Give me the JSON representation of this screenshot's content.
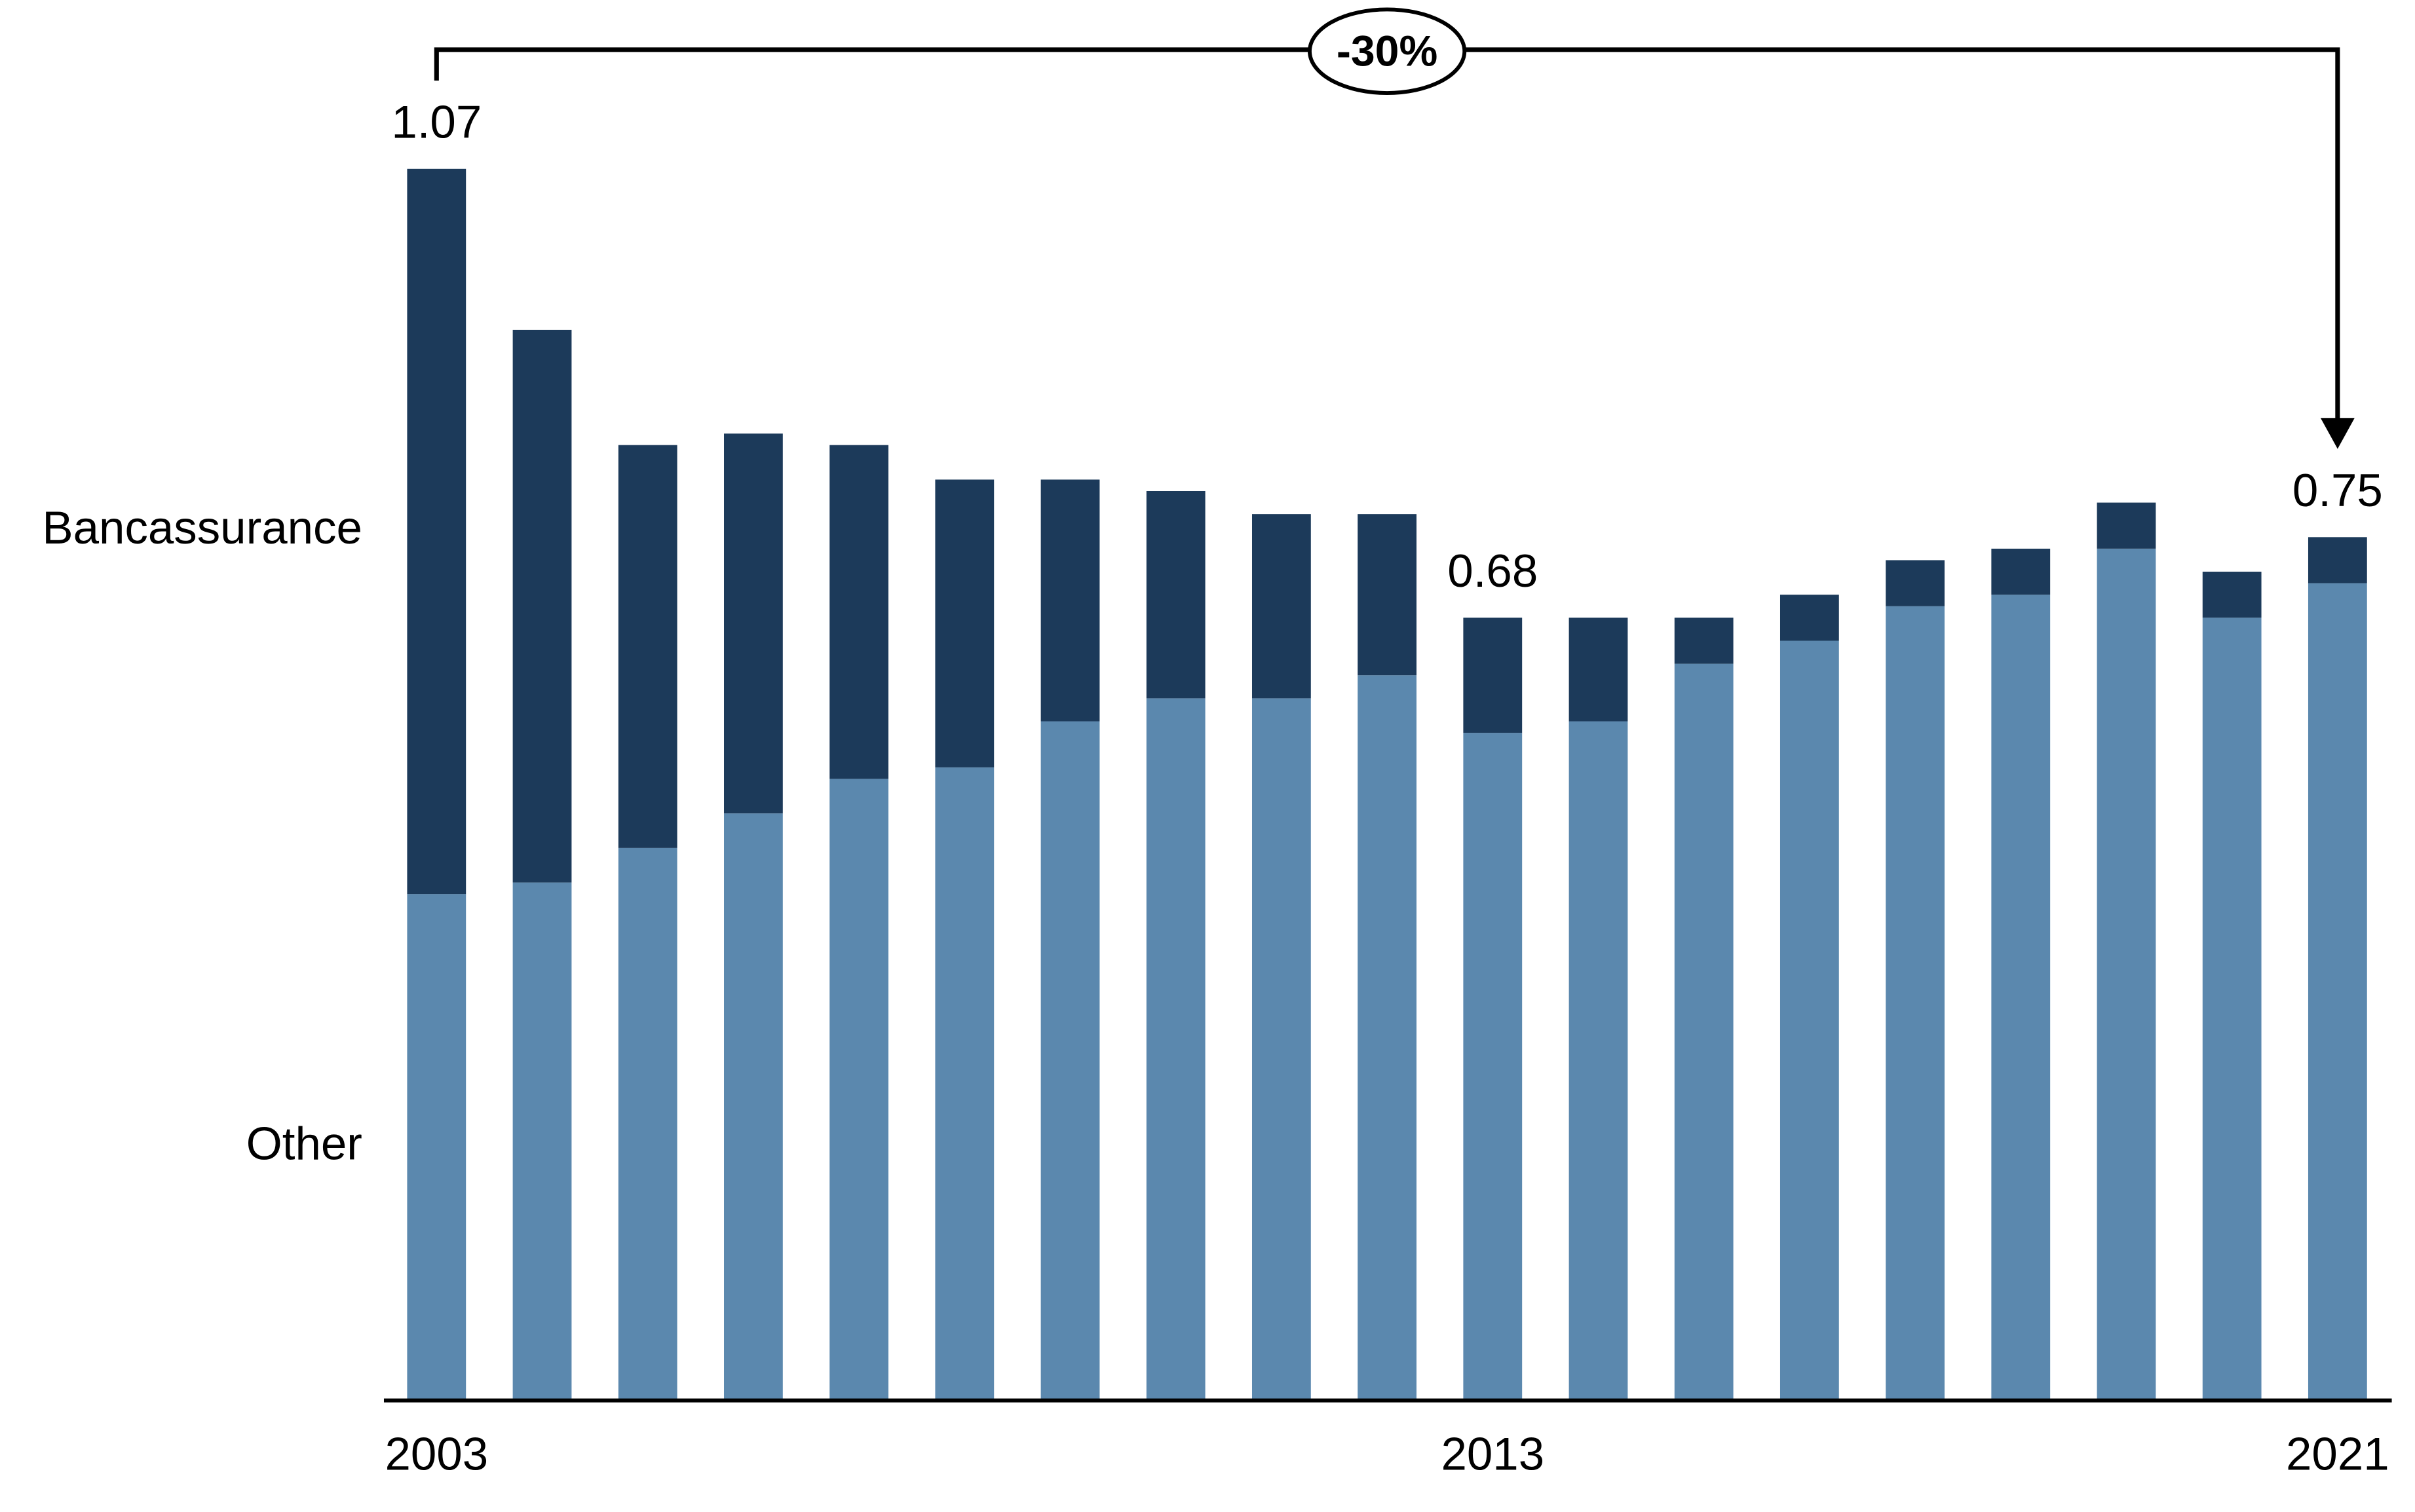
{
  "chart_data": {
    "type": "stacked-bar",
    "categories": [
      "2003",
      null,
      null,
      null,
      null,
      null,
      null,
      null,
      null,
      null,
      "2013",
      null,
      null,
      null,
      null,
      null,
      null,
      null,
      "2021"
    ],
    "series": [
      {
        "name": "Other",
        "color": "#5b88ae",
        "values": [
          0.44,
          0.45,
          0.48,
          0.51,
          0.54,
          0.55,
          0.59,
          0.61,
          0.61,
          0.63,
          0.58,
          0.59,
          0.64,
          0.66,
          0.69,
          0.7,
          0.74,
          0.68,
          0.71
        ]
      },
      {
        "name": "Bancassurance",
        "color": "#1c3a5a",
        "values": [
          0.63,
          0.48,
          0.35,
          0.33,
          0.29,
          0.25,
          0.21,
          0.18,
          0.16,
          0.14,
          0.1,
          0.09,
          0.04,
          0.04,
          0.04,
          0.04,
          0.04,
          0.04,
          0.04
        ]
      }
    ],
    "total_labels": [
      1.07,
      null,
      null,
      null,
      null,
      null,
      null,
      null,
      null,
      null,
      0.68,
      null,
      null,
      null,
      null,
      null,
      null,
      null,
      0.75
    ],
    "annotation": "-30%",
    "ylim": [
      0,
      1.07
    ]
  }
}
